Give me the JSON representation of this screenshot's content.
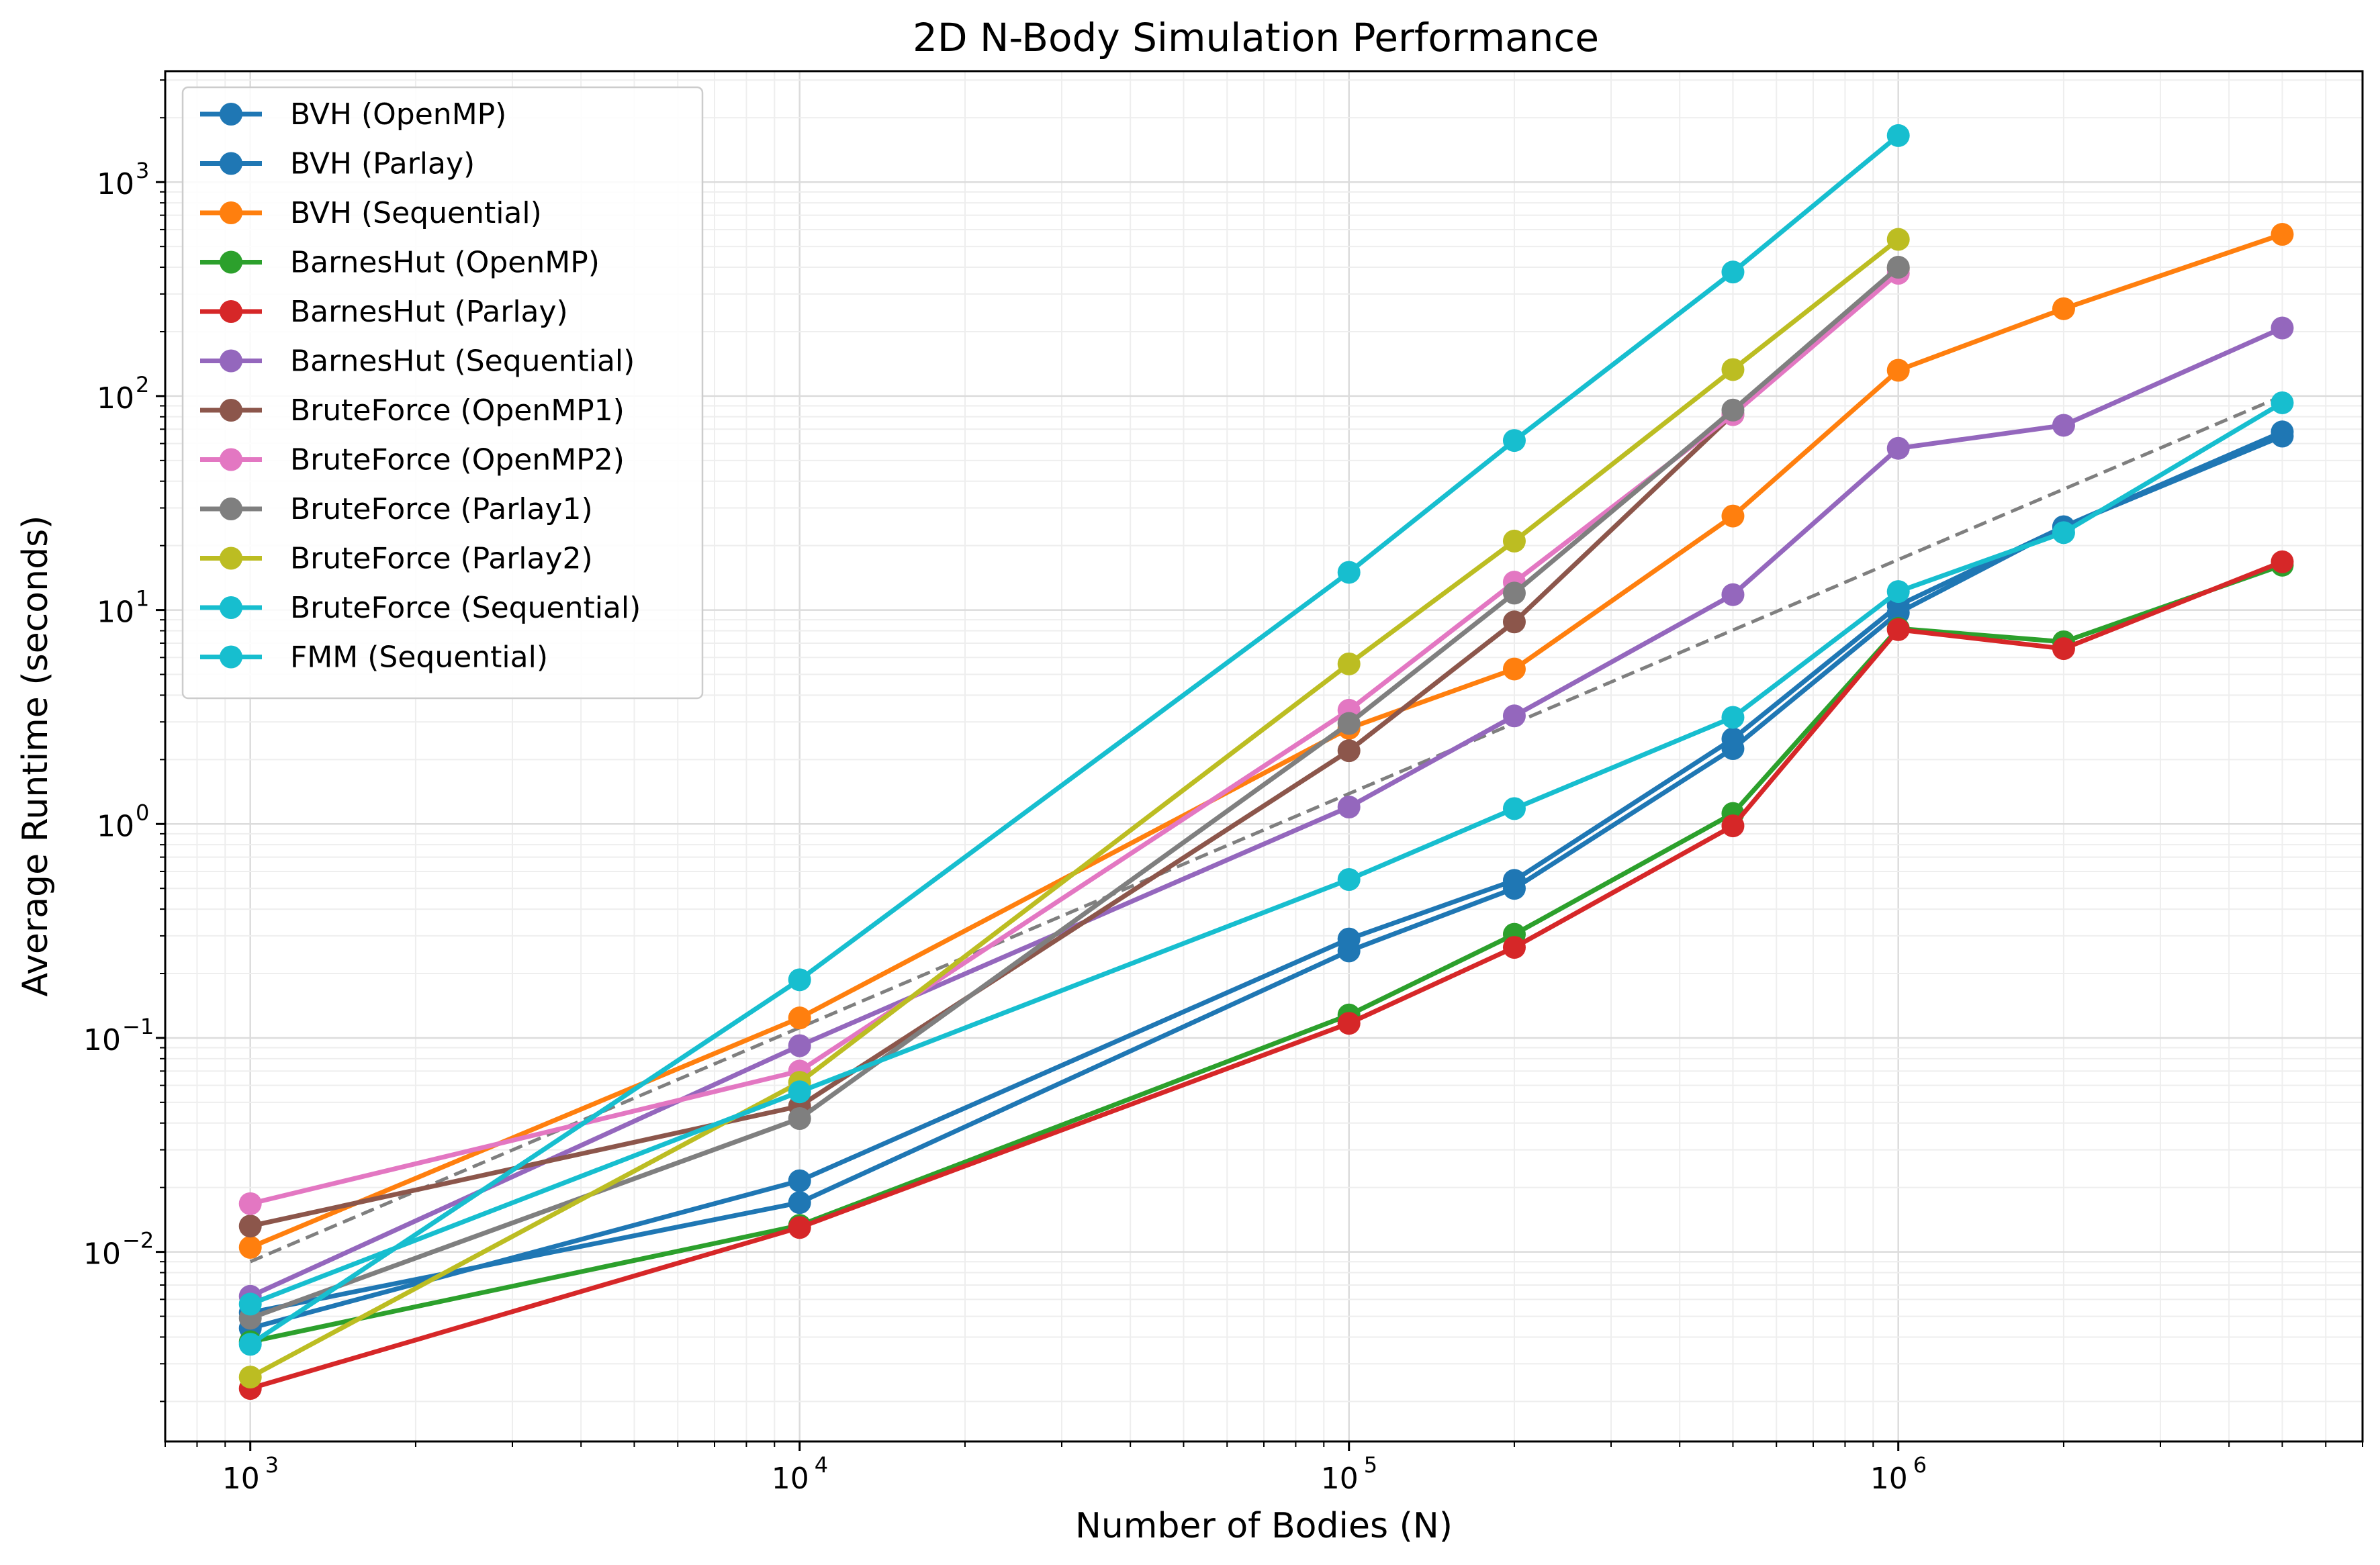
{
  "chart_data": {
    "type": "line",
    "title": "2D N-Body Simulation Performance",
    "xlabel": "Number of Bodies (N)",
    "ylabel": "Average Runtime (seconds)",
    "xscale": "log",
    "yscale": "log",
    "xlim": [
      700,
      7000000
    ],
    "ylim": [
      0.0013,
      3300
    ],
    "grid": true,
    "legend_position": "upper left",
    "x_ticks": [
      {
        "base": "10",
        "exp": "3",
        "value": 1000
      },
      {
        "base": "10",
        "exp": "4",
        "value": 10000
      },
      {
        "base": "10",
        "exp": "5",
        "value": 100000
      },
      {
        "base": "10",
        "exp": "6",
        "value": 1000000
      }
    ],
    "y_ticks": [
      {
        "base": "10",
        "exp": "−2",
        "value": 0.01
      },
      {
        "base": "10",
        "exp": "−1",
        "value": 0.1
      },
      {
        "base": "10",
        "exp": "0",
        "value": 1
      },
      {
        "base": "10",
        "exp": "1",
        "value": 10
      },
      {
        "base": "10",
        "exp": "2",
        "value": 100
      },
      {
        "base": "10",
        "exp": "3",
        "value": 1000
      }
    ],
    "series": [
      {
        "name": "BVH (OpenMP)",
        "color": "#1f77b4",
        "x": [
          1000,
          10000,
          100000,
          200000,
          500000,
          1000000,
          2000000,
          5000000
        ],
        "y": [
          0.0052,
          0.017,
          0.255,
          0.5,
          2.25,
          9.7,
          24.5,
          65
        ]
      },
      {
        "name": "BVH (Parlay)",
        "color": "#1f77b4",
        "x": [
          1000,
          10000,
          100000,
          200000,
          500000,
          1000000,
          2000000,
          5000000
        ],
        "y": [
          0.0044,
          0.0215,
          0.29,
          0.545,
          2.5,
          10.5,
          24.5,
          68
        ]
      },
      {
        "name": "BVH (Sequential)",
        "color": "#ff7f0e",
        "x": [
          1000,
          10000,
          100000,
          200000,
          500000,
          1000000,
          2000000,
          5000000
        ],
        "y": [
          0.0105,
          0.124,
          2.8,
          5.3,
          27.5,
          132,
          256,
          570
        ]
      },
      {
        "name": "BarnesHut (OpenMP)",
        "color": "#2ca02c",
        "x": [
          1000,
          10000,
          100000,
          200000,
          500000,
          1000000,
          2000000,
          5000000
        ],
        "y": [
          0.0038,
          0.0133,
          0.128,
          0.305,
          1.12,
          8.2,
          7.1,
          16.2
        ]
      },
      {
        "name": "BarnesHut (Parlay)",
        "color": "#d62728",
        "x": [
          1000,
          10000,
          100000,
          200000,
          500000,
          1000000,
          2000000,
          5000000
        ],
        "y": [
          0.0023,
          0.013,
          0.117,
          0.265,
          0.98,
          8.1,
          6.6,
          16.8
        ]
      },
      {
        "name": "BarnesHut (Sequential)",
        "color": "#9467bd",
        "x": [
          1000,
          10000,
          100000,
          200000,
          500000,
          1000000,
          2000000,
          5000000
        ],
        "y": [
          0.0062,
          0.092,
          1.2,
          3.2,
          11.8,
          57,
          73,
          208
        ]
      },
      {
        "name": "BruteForce (OpenMP1)",
        "color": "#8c564b",
        "x": [
          1000,
          10000,
          100000,
          200000,
          500000,
          1000000
        ],
        "y": [
          0.0132,
          0.048,
          2.2,
          8.8,
          82,
          395
        ]
      },
      {
        "name": "BruteForce (OpenMP2)",
        "color": "#e377c2",
        "x": [
          1000,
          10000,
          100000,
          200000,
          500000,
          1000000
        ],
        "y": [
          0.0168,
          0.07,
          3.4,
          13.5,
          82,
          375
        ]
      },
      {
        "name": "BruteForce (Parlay1)",
        "color": "#7f7f7f",
        "x": [
          1000,
          10000,
          100000,
          200000,
          500000,
          1000000
        ],
        "y": [
          0.0049,
          0.042,
          2.95,
          12,
          86,
          400
        ]
      },
      {
        "name": "BruteForce (Parlay2)",
        "color": "#bcbd22",
        "x": [
          1000,
          10000,
          100000,
          200000,
          500000,
          1000000
        ],
        "y": [
          0.0026,
          0.062,
          5.6,
          21,
          133,
          540
        ]
      },
      {
        "name": "BruteForce (Sequential)",
        "color": "#17becf",
        "x": [
          1000,
          10000,
          100000,
          200000,
          500000,
          1000000
        ],
        "y": [
          0.0037,
          0.187,
          15,
          62,
          380,
          1650
        ]
      },
      {
        "name": "FMM (Sequential)",
        "color": "#17becf",
        "x": [
          1000,
          10000,
          100000,
          200000,
          500000,
          1000000,
          2000000,
          5000000
        ],
        "y": [
          0.0057,
          0.056,
          0.55,
          1.18,
          3.15,
          12.2,
          23,
          93
        ]
      }
    ],
    "reference_line": {
      "style": "dashed",
      "color": "#7f7f7f",
      "x": [
        1000,
        5000000
      ],
      "y": [
        0.009,
        100
      ]
    }
  }
}
